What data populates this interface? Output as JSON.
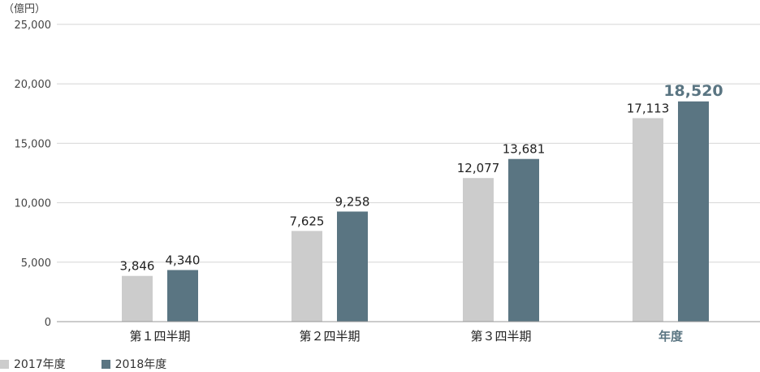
{
  "unit_label": "（億円）",
  "colors": {
    "series_2017": "#cccccc",
    "series_2018": "#5a7582",
    "annual_label": "#5a7582",
    "grid": "#d6d6d6",
    "axis": "#999999",
    "text": "#333333"
  },
  "legend": {
    "item_2017": "2017年度",
    "item_2018": "2018年度"
  },
  "chart_data": {
    "type": "bar",
    "categories": [
      "第１四半期",
      "第２四半期",
      "第３四半期",
      "年度"
    ],
    "series": [
      {
        "name": "2017年度",
        "values": [
          3846,
          7625,
          12077,
          17113
        ],
        "labels": [
          "3,846",
          "7,625",
          "12,077",
          "17,113"
        ]
      },
      {
        "name": "2018年度",
        "values": [
          4340,
          9258,
          13681,
          18520
        ],
        "labels": [
          "4,340",
          "9,258",
          "13,681",
          "18,520"
        ]
      }
    ],
    "ylim": [
      0,
      25000
    ],
    "yticks": [
      0,
      5000,
      10000,
      15000,
      20000,
      25000
    ],
    "ytick_labels": [
      "0",
      "5,000",
      "10,000",
      "15,000",
      "20,000",
      "25,000"
    ],
    "xlabel": "",
    "ylabel": "",
    "grid": true,
    "legend_position": "bottom-left"
  }
}
